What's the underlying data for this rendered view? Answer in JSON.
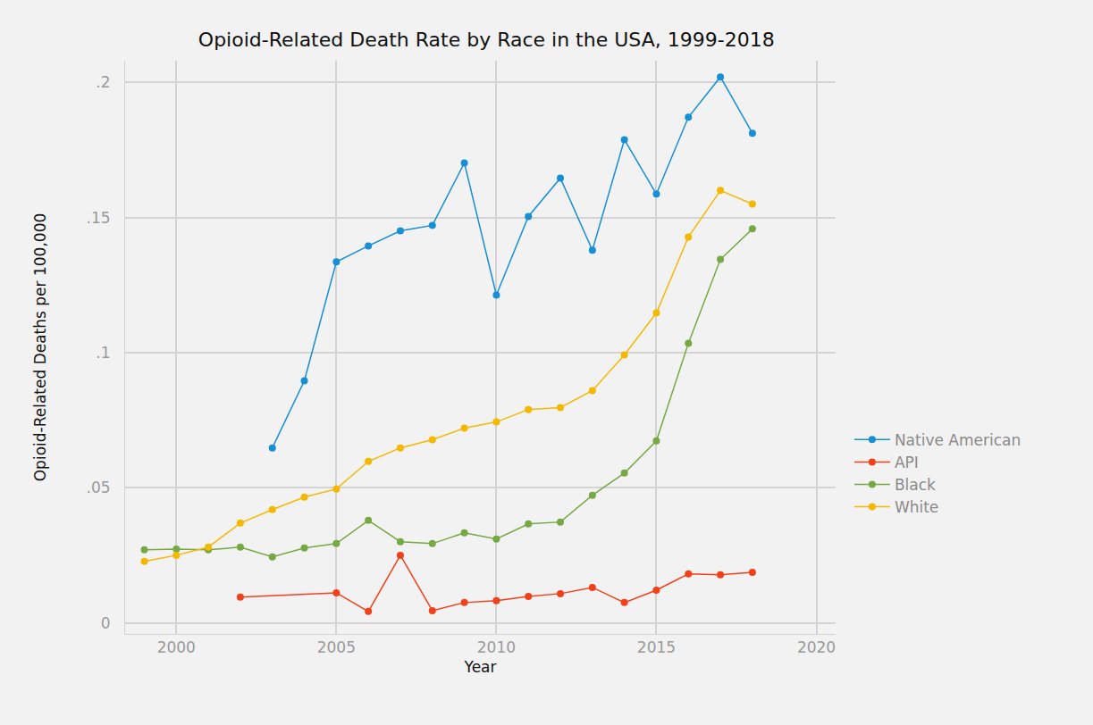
{
  "chart_data": {
    "type": "line",
    "title": "Opioid-Related Death Rate by Race in the USA, 1999-2018",
    "x_label": "Year",
    "y_label": "Opioid-Related Deaths per 100,000",
    "xlim": [
      1998.4,
      2020.6
    ],
    "xticks": [
      2000,
      2005,
      2010,
      2015,
      2020
    ],
    "ylim": [
      -0.004,
      0.208
    ],
    "yticks": [
      {
        "value": 0,
        "label": "0"
      },
      {
        "value": 0.05,
        "label": ".05"
      },
      {
        "value": 0.1,
        "label": ".1"
      },
      {
        "value": 0.15,
        "label": ".15"
      },
      {
        "value": 0.2,
        "label": ".2"
      }
    ],
    "grid": true,
    "legend": "right",
    "marker": "circle",
    "series": [
      {
        "name": "Native American",
        "color": "#168fd4",
        "x": [
          2003,
          2004,
          2005,
          2006,
          2007,
          2008,
          2009,
          2010,
          2011,
          2012,
          2013,
          2014,
          2015,
          2016,
          2017,
          2018
        ],
        "values": [
          0.0648,
          0.0896,
          0.1336,
          0.1395,
          0.1451,
          0.1471,
          0.1702,
          0.1213,
          0.1504,
          0.1646,
          0.1379,
          0.1788,
          0.1587,
          0.1871,
          0.202,
          0.1812
        ]
      },
      {
        "name": "API",
        "color": "#f2401a",
        "x": [
          2002,
          2005,
          2006,
          2007,
          2008,
          2009,
          2010,
          2011,
          2012,
          2013,
          2014,
          2015,
          2016,
          2017,
          2018
        ],
        "values": [
          0.0096,
          0.0112,
          0.0043,
          0.0251,
          0.0046,
          0.0076,
          0.0083,
          0.0099,
          0.0109,
          0.0132,
          0.0076,
          0.0122,
          0.0182,
          0.0179,
          0.0188
        ]
      },
      {
        "name": "Black",
        "color": "#76a843",
        "x": [
          1999,
          2000,
          2001,
          2002,
          2003,
          2004,
          2005,
          2006,
          2007,
          2008,
          2009,
          2010,
          2011,
          2012,
          2013,
          2014,
          2015,
          2016,
          2017,
          2018
        ],
        "values": [
          0.0271,
          0.0274,
          0.0271,
          0.0281,
          0.0245,
          0.0278,
          0.0294,
          0.038,
          0.0301,
          0.0294,
          0.0334,
          0.0311,
          0.0367,
          0.0374,
          0.0473,
          0.0555,
          0.0674,
          0.1035,
          0.1345,
          0.1458
        ]
      },
      {
        "name": "White",
        "color": "#f5b800",
        "x": [
          1999,
          2000,
          2001,
          2002,
          2003,
          2004,
          2005,
          2006,
          2007,
          2008,
          2009,
          2010,
          2011,
          2012,
          2013,
          2014,
          2015,
          2016,
          2017,
          2018
        ],
        "values": [
          0.0228,
          0.0251,
          0.0281,
          0.037,
          0.042,
          0.0466,
          0.0496,
          0.0598,
          0.0648,
          0.0678,
          0.0721,
          0.0744,
          0.079,
          0.0797,
          0.086,
          0.0992,
          0.1147,
          0.1428,
          0.16,
          0.155
        ]
      }
    ]
  }
}
